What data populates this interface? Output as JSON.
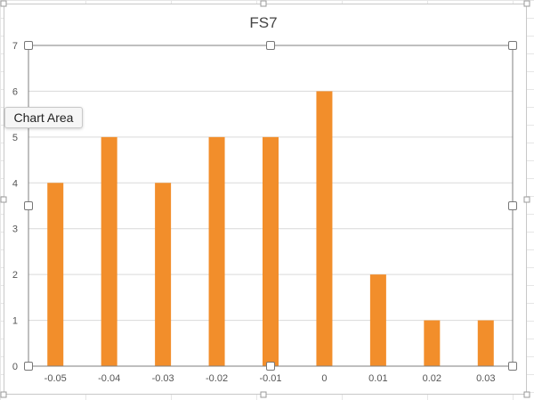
{
  "chart_data": {
    "type": "bar",
    "title": "FS7",
    "categories": [
      "-0.05",
      "-0.04",
      "-0.03",
      "-0.02",
      "-0.01",
      "0",
      "0.01",
      "0.02",
      "0.03"
    ],
    "values": [
      4,
      5,
      4,
      5,
      5,
      6,
      2,
      1,
      1
    ],
    "ylim": [
      0,
      7
    ],
    "yticks": [
      "0",
      "1",
      "2",
      "3",
      "4",
      "5",
      "6",
      "7"
    ],
    "xlabel": "",
    "ylabel": "",
    "grid": "horizontal",
    "legend": "none",
    "bar_color": "#f28e2b"
  },
  "tooltip": {
    "label": "Chart Area"
  },
  "colors": {
    "gridline": "#d9d9d9",
    "axis_text": "#555555",
    "title_text": "#444444",
    "selection_frame": "#7f7f7f"
  }
}
